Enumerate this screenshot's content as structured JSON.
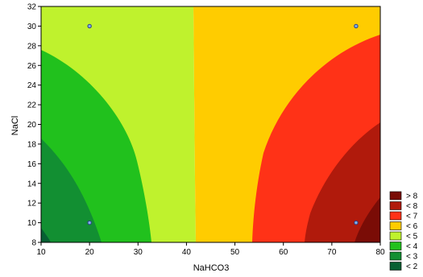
{
  "chart_data": {
    "type": "contour",
    "xlabel": "NaHCO3",
    "ylabel": "NaCl",
    "xlim": [
      10,
      80
    ],
    "ylim": [
      8,
      32
    ],
    "xticks": [
      10,
      20,
      30,
      40,
      50,
      60,
      70,
      80
    ],
    "yticks": [
      8,
      10,
      12,
      14,
      16,
      18,
      20,
      22,
      24,
      26,
      28,
      30,
      32
    ],
    "grid": false,
    "legend_position": "right-bottom",
    "levels": [
      {
        "label": "> 8",
        "color": "#7a0c06"
      },
      {
        "label": "< 8",
        "color": "#b01a0c"
      },
      {
        "label": "< 7",
        "color": "#ff3217"
      },
      {
        "label": "< 6",
        "color": "#ffcc00"
      },
      {
        "label": "< 5",
        "color": "#bff22d"
      },
      {
        "label": "< 4",
        "color": "#21c11d"
      },
      {
        "label": "< 3",
        "color": "#128f32"
      },
      {
        "label": "< 2",
        "color": "#076033"
      }
    ],
    "design_points": [
      {
        "x": 20,
        "y": 30
      },
      {
        "x": 75,
        "y": 30
      },
      {
        "x": 20,
        "y": 10
      },
      {
        "x": 75,
        "y": 10
      }
    ]
  }
}
